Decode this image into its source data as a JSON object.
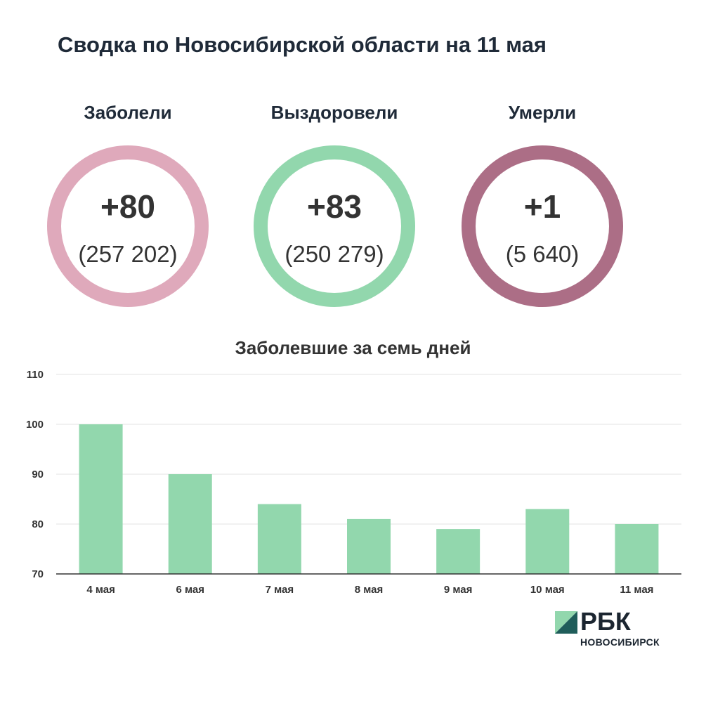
{
  "title": "Сводка по Новосибирской области на 11 мая",
  "stats": [
    {
      "label": "Заболели",
      "delta": "+80",
      "total": "(257 202)",
      "color": "#dfa9bb"
    },
    {
      "label": "Выздоровели",
      "delta": "+83",
      "total": "(250 279)",
      "color": "#92d7ad"
    },
    {
      "label": "Умерли",
      "delta": "+1",
      "total": "(5 640)",
      "color": "#ac6e86"
    }
  ],
  "chart_data": {
    "type": "bar",
    "title": "Заболевшие за семь дней",
    "categories": [
      "4 мая",
      "6 мая",
      "7 мая",
      "8 мая",
      "9 мая",
      "10 мая",
      "11 мая"
    ],
    "values": [
      100,
      90,
      84,
      81,
      79,
      83,
      80
    ],
    "ylim": [
      70,
      110
    ],
    "yticks": [
      110,
      100,
      90,
      80,
      70
    ],
    "grid": true,
    "bar_color": "#92d7ad"
  },
  "logo": {
    "name": "РБК",
    "sub": "НОВОСИБИРСК"
  }
}
